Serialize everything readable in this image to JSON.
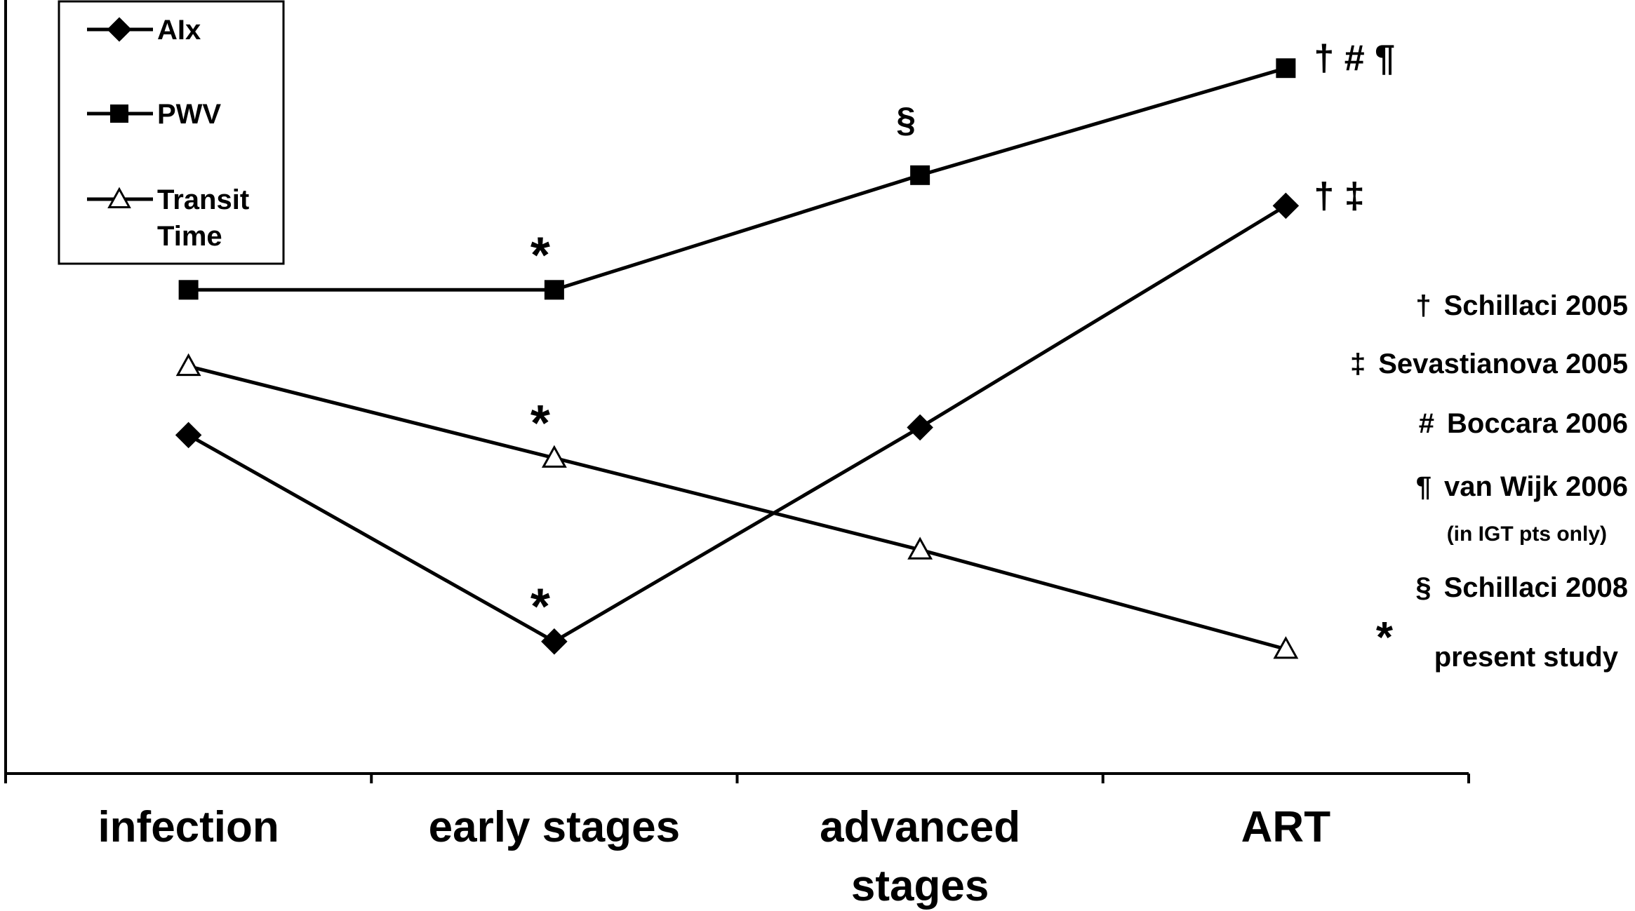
{
  "chart_data": {
    "type": "line",
    "categories": [
      "infection",
      "early stages",
      "advanced stages",
      "ART"
    ],
    "category_lines": [
      [
        "infection"
      ],
      [
        "early stages"
      ],
      [
        "advanced",
        "stages"
      ],
      [
        "ART"
      ]
    ],
    "ylim": [
      0,
      100
    ],
    "series": [
      {
        "name": "AIx",
        "marker": "diamond",
        "values": [
          44,
          17,
          45,
          74
        ]
      },
      {
        "name": "PWV",
        "marker": "square",
        "values": [
          63,
          63,
          78,
          92
        ]
      },
      {
        "name": "Transit Time",
        "marker": "triangle",
        "values": [
          53,
          41,
          29,
          16
        ]
      }
    ],
    "legend": {
      "placement": "top-left",
      "entries": [
        [
          "AIx"
        ],
        [
          "PWV"
        ],
        [
          "Transit",
          "Time"
        ]
      ]
    },
    "annotations": [
      {
        "series": "PWV",
        "category": "early stages",
        "text": "*"
      },
      {
        "series": "Transit Time",
        "category": "early stages",
        "text": "*"
      },
      {
        "series": "AIx",
        "category": "early stages",
        "text": "*"
      },
      {
        "series": "PWV",
        "category": "advanced stages",
        "text": "§"
      },
      {
        "series": "PWV",
        "category": "ART",
        "text": "† # ¶"
      },
      {
        "series": "AIx",
        "category": "ART",
        "text": "† ‡"
      }
    ],
    "footnotes": [
      {
        "symbol": "†",
        "text": "Schillaci 2005"
      },
      {
        "symbol": "‡",
        "text": "Sevastianova 2005"
      },
      {
        "symbol": "#",
        "text": "Boccara 2006"
      },
      {
        "symbol": "¶",
        "text": "van Wijk 2006",
        "note": "(in IGT pts only)"
      },
      {
        "symbol": "§",
        "text": "Schillaci 2008"
      },
      {
        "symbol": "*",
        "text": "present study"
      }
    ]
  }
}
